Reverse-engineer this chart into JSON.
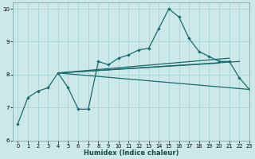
{
  "xlabel": "Humidex (Indice chaleur)",
  "xlim": [
    -0.5,
    23
  ],
  "ylim": [
    6,
    10.2
  ],
  "yticks": [
    6,
    7,
    8,
    9,
    10
  ],
  "xticks": [
    0,
    1,
    2,
    3,
    4,
    5,
    6,
    7,
    8,
    9,
    10,
    11,
    12,
    13,
    14,
    15,
    16,
    17,
    18,
    19,
    20,
    21,
    22,
    23
  ],
  "background_color": "#cce8e8",
  "grid_color": "#aad4d4",
  "line_color": "#1a6b6b",
  "main_series": [
    6.5,
    7.3,
    7.5,
    7.6,
    8.05,
    7.6,
    6.95,
    6.95,
    8.4,
    8.3,
    8.5,
    8.6,
    8.75,
    8.8,
    9.4,
    10.0,
    9.75,
    9.1,
    8.7,
    8.55,
    8.4,
    8.4,
    7.9,
    7.55
  ],
  "straight_lines": [
    {
      "x0": 4,
      "y0": 8.05,
      "x1": 22,
      "y1": 8.4
    },
    {
      "x0": 4,
      "y0": 8.05,
      "x1": 21,
      "y1": 8.5
    },
    {
      "x0": 4,
      "y0": 8.05,
      "x1": 23,
      "y1": 7.55
    },
    {
      "x0": 4,
      "y0": 8.05,
      "x1": 20,
      "y1": 8.35
    }
  ]
}
